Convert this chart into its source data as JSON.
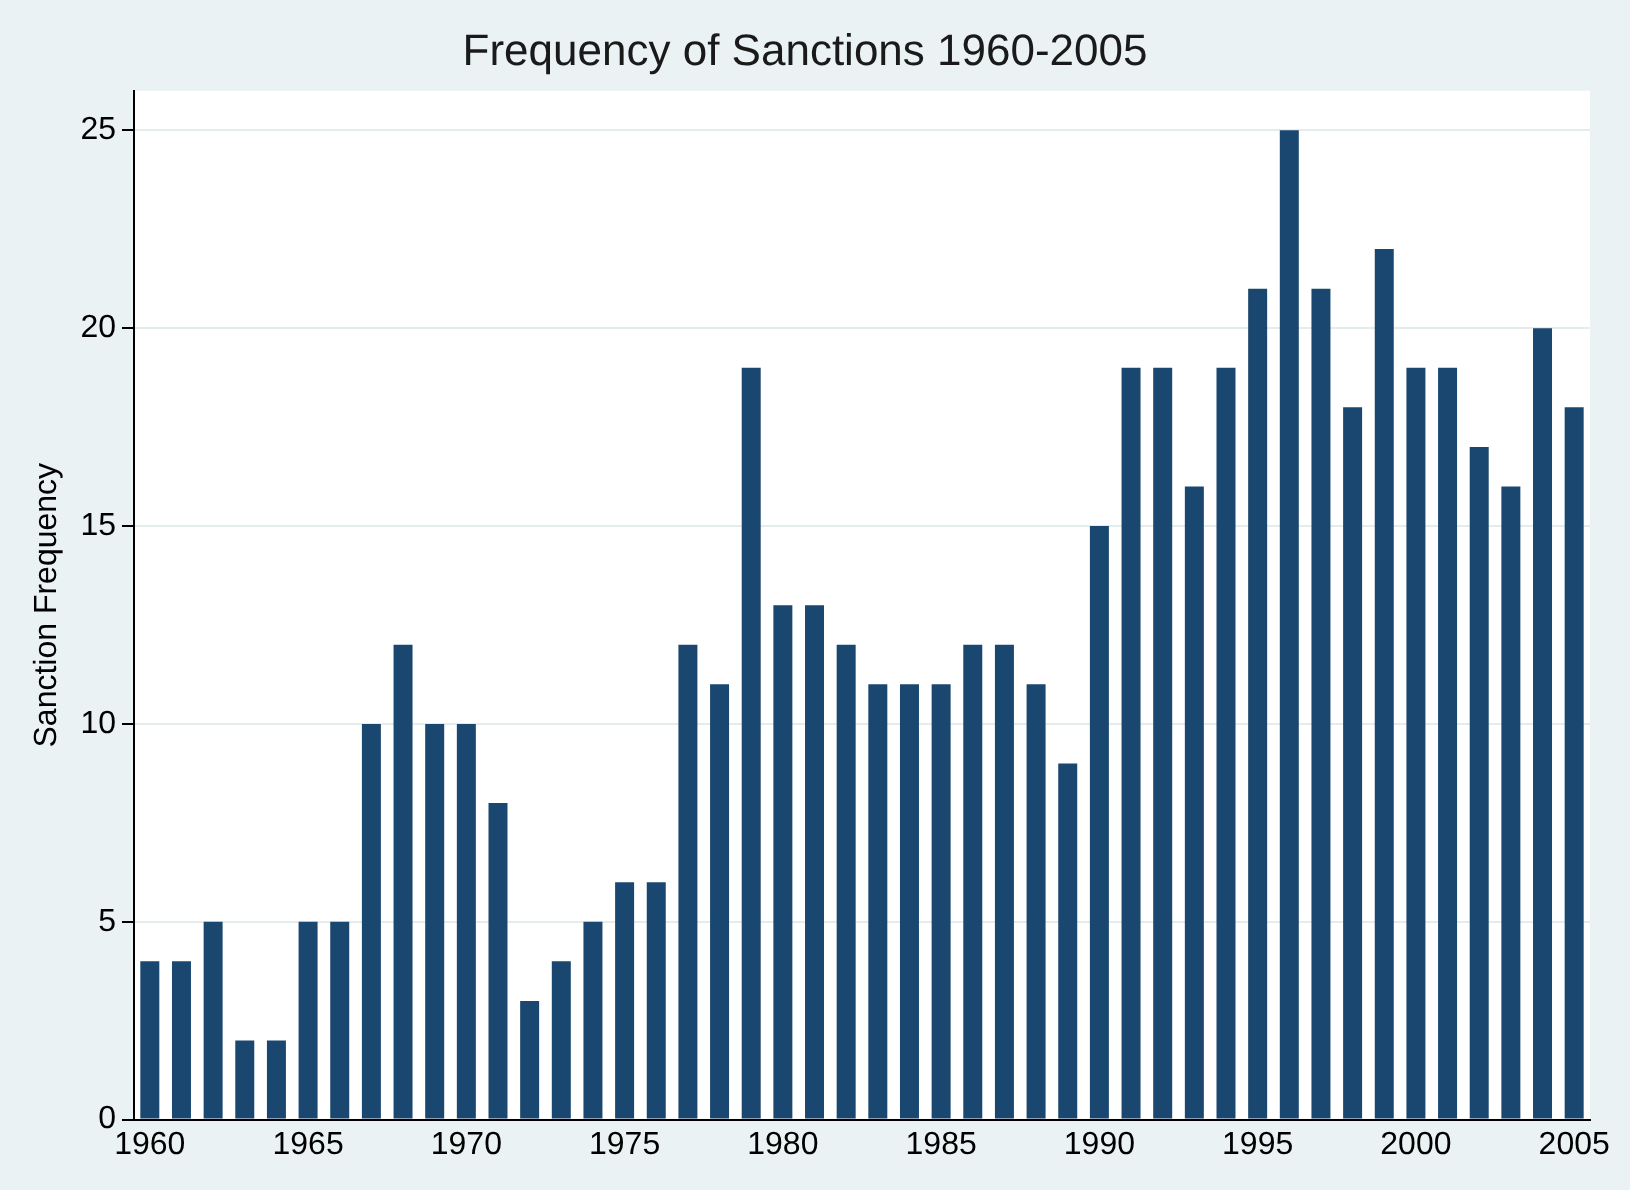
{
  "chart_data": {
    "type": "bar",
    "title": "Frequency of Sanctions 1960-2005",
    "ylabel": "Sanction Frequency",
    "categories": [
      "1960",
      null,
      null,
      null,
      null,
      "1965",
      null,
      null,
      null,
      null,
      "1970",
      null,
      null,
      null,
      null,
      "1975",
      null,
      null,
      null,
      null,
      "1980",
      null,
      null,
      null,
      null,
      "1985",
      null,
      null,
      null,
      null,
      "1990",
      null,
      null,
      null,
      null,
      "1995",
      null,
      null,
      null,
      null,
      "2000",
      null,
      null,
      null,
      null,
      "2005"
    ],
    "values": [
      4,
      4,
      5,
      2,
      2,
      5,
      5,
      10,
      12,
      10,
      10,
      8,
      3,
      4,
      5,
      6,
      6,
      12,
      11,
      19,
      13,
      13,
      12,
      11,
      11,
      11,
      12,
      12,
      11,
      9,
      15,
      19,
      19,
      16,
      19,
      21,
      25,
      21,
      18,
      22,
      19,
      19,
      17,
      16,
      20,
      18
    ],
    "color": "#1a476f",
    "ylim": [
      0,
      26
    ],
    "yticks": [
      0,
      5,
      10,
      15,
      20,
      25
    ],
    "grid": "y"
  }
}
